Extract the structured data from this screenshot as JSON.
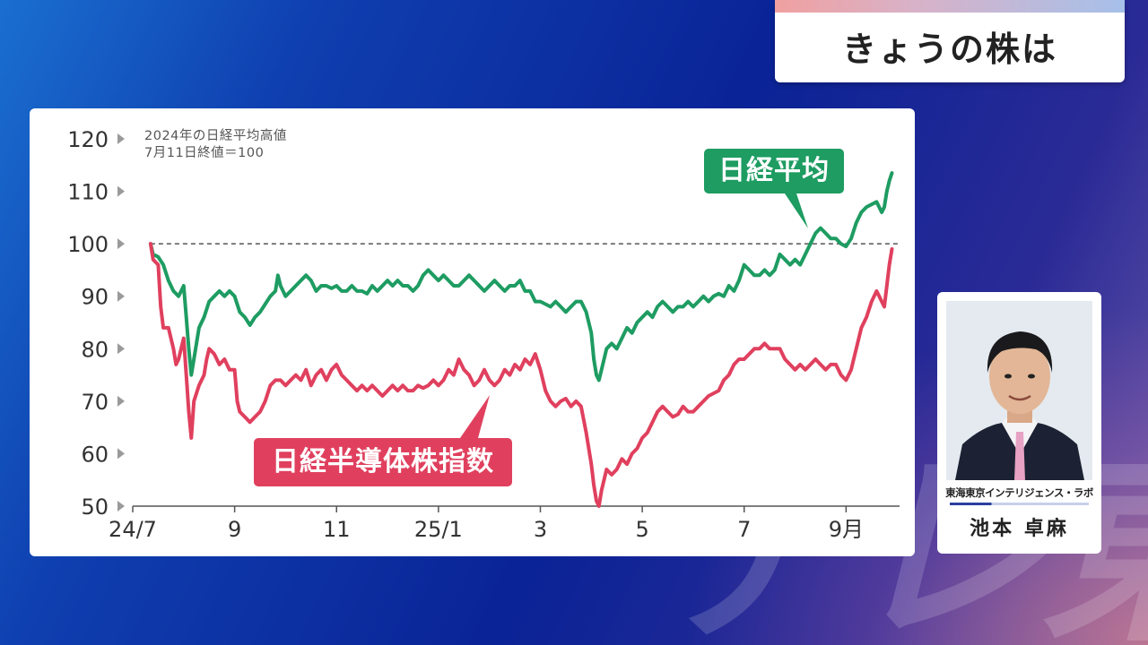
{
  "header": {
    "title": "きょうの株は"
  },
  "watermark": "テレ東",
  "chart_note": [
    "2024年の日経平均高値",
    "7月11日終値＝100"
  ],
  "presenter": {
    "affiliation": "東海東京インテリジェンス・ラボ",
    "name": "池本 卓麻"
  },
  "colors": {
    "nikkei": "#1e9c62",
    "semiconductor": "#e0405e",
    "axis": "#333333"
  },
  "chart_data": {
    "type": "line",
    "title": "",
    "ylim": [
      50,
      120
    ],
    "yticks": [
      50,
      60,
      70,
      80,
      90,
      100,
      110,
      120
    ],
    "xlim": [
      0,
      14.6
    ],
    "xticks": [
      {
        "x": 0,
        "label": "24/7"
      },
      {
        "x": 2,
        "label": "9"
      },
      {
        "x": 4,
        "label": "11"
      },
      {
        "x": 6,
        "label": "25/1"
      },
      {
        "x": 8,
        "label": "3"
      },
      {
        "x": 10,
        "label": "5"
      },
      {
        "x": 12,
        "label": "7"
      },
      {
        "x": 14,
        "label": "9月"
      }
    ],
    "reference_line": 100,
    "series": [
      {
        "name": "日経平均",
        "color": "#1e9c62",
        "points": [
          [
            0.35,
            100
          ],
          [
            0.4,
            98
          ],
          [
            0.5,
            97.5
          ],
          [
            0.6,
            96
          ],
          [
            0.7,
            93
          ],
          [
            0.8,
            91
          ],
          [
            0.9,
            90
          ],
          [
            1.0,
            92
          ],
          [
            1.05,
            86
          ],
          [
            1.1,
            80
          ],
          [
            1.15,
            75
          ],
          [
            1.2,
            78
          ],
          [
            1.3,
            84
          ],
          [
            1.4,
            86
          ],
          [
            1.5,
            89
          ],
          [
            1.6,
            90
          ],
          [
            1.7,
            91
          ],
          [
            1.8,
            90
          ],
          [
            1.9,
            91
          ],
          [
            2.0,
            90
          ],
          [
            2.1,
            87
          ],
          [
            2.2,
            86
          ],
          [
            2.3,
            84.5
          ],
          [
            2.4,
            86
          ],
          [
            2.5,
            87
          ],
          [
            2.6,
            88.5
          ],
          [
            2.7,
            90
          ],
          [
            2.8,
            91
          ],
          [
            2.85,
            94
          ],
          [
            2.9,
            92
          ],
          [
            3.0,
            90
          ],
          [
            3.1,
            91
          ],
          [
            3.2,
            92
          ],
          [
            3.3,
            93
          ],
          [
            3.4,
            94
          ],
          [
            3.5,
            93
          ],
          [
            3.6,
            91
          ],
          [
            3.7,
            92
          ],
          [
            3.8,
            92
          ],
          [
            3.9,
            91.5
          ],
          [
            4.0,
            92
          ],
          [
            4.1,
            91
          ],
          [
            4.2,
            91
          ],
          [
            4.3,
            92
          ],
          [
            4.4,
            91
          ],
          [
            4.5,
            91
          ],
          [
            4.6,
            90.5
          ],
          [
            4.7,
            92
          ],
          [
            4.8,
            91
          ],
          [
            4.9,
            92
          ],
          [
            5.0,
            93
          ],
          [
            5.1,
            92
          ],
          [
            5.2,
            93
          ],
          [
            5.3,
            92
          ],
          [
            5.4,
            92
          ],
          [
            5.5,
            91
          ],
          [
            5.6,
            92
          ],
          [
            5.7,
            94
          ],
          [
            5.8,
            95
          ],
          [
            5.9,
            94
          ],
          [
            6.0,
            93
          ],
          [
            6.1,
            94
          ],
          [
            6.2,
            93
          ],
          [
            6.3,
            92
          ],
          [
            6.4,
            92
          ],
          [
            6.5,
            93
          ],
          [
            6.6,
            94
          ],
          [
            6.7,
            93
          ],
          [
            6.8,
            92
          ],
          [
            6.9,
            91
          ],
          [
            7.0,
            92
          ],
          [
            7.1,
            93
          ],
          [
            7.2,
            92
          ],
          [
            7.3,
            91
          ],
          [
            7.4,
            92
          ],
          [
            7.5,
            92
          ],
          [
            7.6,
            93
          ],
          [
            7.7,
            91
          ],
          [
            7.8,
            91
          ],
          [
            7.9,
            89
          ],
          [
            8.0,
            89
          ],
          [
            8.1,
            88.5
          ],
          [
            8.2,
            88
          ],
          [
            8.3,
            89
          ],
          [
            8.4,
            88
          ],
          [
            8.5,
            87
          ],
          [
            8.6,
            88
          ],
          [
            8.7,
            89
          ],
          [
            8.8,
            89
          ],
          [
            8.9,
            87
          ],
          [
            9.0,
            83
          ],
          [
            9.05,
            78
          ],
          [
            9.1,
            75
          ],
          [
            9.15,
            74
          ],
          [
            9.2,
            76
          ],
          [
            9.3,
            80
          ],
          [
            9.4,
            81
          ],
          [
            9.5,
            80
          ],
          [
            9.6,
            82
          ],
          [
            9.7,
            84
          ],
          [
            9.8,
            83
          ],
          [
            9.9,
            85
          ],
          [
            10.0,
            86
          ],
          [
            10.1,
            87
          ],
          [
            10.2,
            86
          ],
          [
            10.3,
            88
          ],
          [
            10.4,
            89
          ],
          [
            10.5,
            88
          ],
          [
            10.6,
            87
          ],
          [
            10.7,
            88
          ],
          [
            10.8,
            88
          ],
          [
            10.9,
            89
          ],
          [
            11.0,
            88
          ],
          [
            11.1,
            89
          ],
          [
            11.2,
            90
          ],
          [
            11.3,
            89
          ],
          [
            11.4,
            90
          ],
          [
            11.5,
            90.5
          ],
          [
            11.6,
            90
          ],
          [
            11.7,
            92
          ],
          [
            11.8,
            91
          ],
          [
            11.9,
            93
          ],
          [
            12.0,
            96
          ],
          [
            12.1,
            95
          ],
          [
            12.2,
            94
          ],
          [
            12.3,
            94
          ],
          [
            12.4,
            95
          ],
          [
            12.5,
            94
          ],
          [
            12.6,
            95
          ],
          [
            12.7,
            98
          ],
          [
            12.8,
            97
          ],
          [
            12.9,
            96
          ],
          [
            13.0,
            97
          ],
          [
            13.1,
            96
          ],
          [
            13.2,
            98
          ],
          [
            13.3,
            100
          ],
          [
            13.4,
            102
          ],
          [
            13.5,
            103
          ],
          [
            13.6,
            102
          ],
          [
            13.7,
            101
          ],
          [
            13.8,
            101
          ],
          [
            13.9,
            100
          ],
          [
            14.0,
            99.5
          ],
          [
            14.1,
            101
          ],
          [
            14.2,
            104
          ],
          [
            14.3,
            106
          ],
          [
            14.4,
            107
          ],
          [
            14.5,
            107.5
          ],
          [
            14.6,
            108
          ],
          [
            14.7,
            106
          ],
          [
            14.75,
            107
          ],
          [
            14.8,
            110
          ],
          [
            14.85,
            112
          ],
          [
            14.9,
            113.5
          ]
        ]
      },
      {
        "name": "日経半導体株指数",
        "color": "#e0405e",
        "points": [
          [
            0.35,
            100
          ],
          [
            0.4,
            97
          ],
          [
            0.5,
            96
          ],
          [
            0.55,
            88
          ],
          [
            0.6,
            84
          ],
          [
            0.7,
            84
          ],
          [
            0.8,
            80
          ],
          [
            0.85,
            77
          ],
          [
            0.9,
            78
          ],
          [
            1.0,
            82
          ],
          [
            1.05,
            75
          ],
          [
            1.1,
            68
          ],
          [
            1.15,
            63
          ],
          [
            1.2,
            70
          ],
          [
            1.3,
            73
          ],
          [
            1.4,
            75
          ],
          [
            1.45,
            78
          ],
          [
            1.5,
            80
          ],
          [
            1.6,
            79
          ],
          [
            1.7,
            77
          ],
          [
            1.8,
            78
          ],
          [
            1.9,
            76
          ],
          [
            2.0,
            76
          ],
          [
            2.05,
            70
          ],
          [
            2.1,
            68
          ],
          [
            2.2,
            67
          ],
          [
            2.3,
            66
          ],
          [
            2.4,
            67
          ],
          [
            2.5,
            68
          ],
          [
            2.6,
            70
          ],
          [
            2.7,
            73
          ],
          [
            2.8,
            74
          ],
          [
            2.9,
            74
          ],
          [
            3.0,
            73
          ],
          [
            3.1,
            74
          ],
          [
            3.2,
            75
          ],
          [
            3.3,
            74
          ],
          [
            3.4,
            76
          ],
          [
            3.5,
            73
          ],
          [
            3.6,
            75
          ],
          [
            3.7,
            76
          ],
          [
            3.8,
            74
          ],
          [
            3.9,
            76
          ],
          [
            4.0,
            77
          ],
          [
            4.1,
            75
          ],
          [
            4.2,
            74
          ],
          [
            4.3,
            73
          ],
          [
            4.4,
            72
          ],
          [
            4.5,
            73
          ],
          [
            4.6,
            72
          ],
          [
            4.7,
            73
          ],
          [
            4.8,
            72
          ],
          [
            4.9,
            71
          ],
          [
            5.0,
            72
          ],
          [
            5.1,
            73
          ],
          [
            5.2,
            72
          ],
          [
            5.3,
            73
          ],
          [
            5.4,
            72
          ],
          [
            5.5,
            72
          ],
          [
            5.6,
            73
          ],
          [
            5.7,
            72.5
          ],
          [
            5.8,
            73
          ],
          [
            5.9,
            74
          ],
          [
            6.0,
            73
          ],
          [
            6.1,
            74
          ],
          [
            6.2,
            76
          ],
          [
            6.3,
            75
          ],
          [
            6.4,
            78
          ],
          [
            6.5,
            76
          ],
          [
            6.6,
            75
          ],
          [
            6.7,
            73
          ],
          [
            6.8,
            74
          ],
          [
            6.9,
            76
          ],
          [
            7.0,
            74
          ],
          [
            7.1,
            73
          ],
          [
            7.2,
            74
          ],
          [
            7.3,
            76
          ],
          [
            7.4,
            75
          ],
          [
            7.5,
            77
          ],
          [
            7.6,
            76
          ],
          [
            7.7,
            78
          ],
          [
            7.8,
            77
          ],
          [
            7.9,
            79
          ],
          [
            8.0,
            76
          ],
          [
            8.1,
            72
          ],
          [
            8.2,
            70
          ],
          [
            8.3,
            69
          ],
          [
            8.4,
            70
          ],
          [
            8.5,
            70.5
          ],
          [
            8.6,
            69
          ],
          [
            8.7,
            70
          ],
          [
            8.8,
            69
          ],
          [
            8.9,
            64
          ],
          [
            9.0,
            58
          ],
          [
            9.05,
            54
          ],
          [
            9.1,
            51
          ],
          [
            9.15,
            50
          ],
          [
            9.2,
            53
          ],
          [
            9.3,
            57
          ],
          [
            9.4,
            56
          ],
          [
            9.5,
            57
          ],
          [
            9.6,
            59
          ],
          [
            9.7,
            58
          ],
          [
            9.8,
            60
          ],
          [
            9.9,
            61
          ],
          [
            10.0,
            63
          ],
          [
            10.1,
            64
          ],
          [
            10.2,
            66
          ],
          [
            10.3,
            68
          ],
          [
            10.4,
            69
          ],
          [
            10.5,
            68
          ],
          [
            10.6,
            67
          ],
          [
            10.7,
            67.5
          ],
          [
            10.8,
            69
          ],
          [
            10.9,
            68
          ],
          [
            11.0,
            68
          ],
          [
            11.1,
            69
          ],
          [
            11.2,
            70
          ],
          [
            11.3,
            71
          ],
          [
            11.4,
            71.5
          ],
          [
            11.5,
            72
          ],
          [
            11.6,
            74
          ],
          [
            11.7,
            75
          ],
          [
            11.8,
            77
          ],
          [
            11.9,
            78
          ],
          [
            12.0,
            78
          ],
          [
            12.1,
            79
          ],
          [
            12.2,
            80
          ],
          [
            12.3,
            80
          ],
          [
            12.4,
            81
          ],
          [
            12.5,
            80
          ],
          [
            12.6,
            80
          ],
          [
            12.7,
            80
          ],
          [
            12.8,
            78
          ],
          [
            12.9,
            77
          ],
          [
            13.0,
            76
          ],
          [
            13.1,
            77
          ],
          [
            13.2,
            76
          ],
          [
            13.3,
            77
          ],
          [
            13.4,
            78
          ],
          [
            13.5,
            77
          ],
          [
            13.6,
            76
          ],
          [
            13.7,
            77
          ],
          [
            13.8,
            77
          ],
          [
            13.9,
            75
          ],
          [
            14.0,
            74
          ],
          [
            14.1,
            76
          ],
          [
            14.2,
            80
          ],
          [
            14.3,
            84
          ],
          [
            14.4,
            86
          ],
          [
            14.5,
            89
          ],
          [
            14.6,
            91
          ],
          [
            14.65,
            90
          ],
          [
            14.7,
            89
          ],
          [
            14.75,
            88
          ],
          [
            14.8,
            92
          ],
          [
            14.85,
            96
          ],
          [
            14.9,
            99
          ]
        ]
      }
    ]
  }
}
